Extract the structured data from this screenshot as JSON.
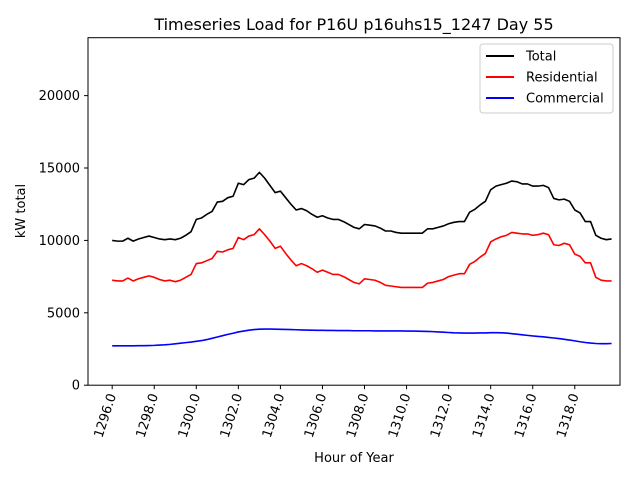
{
  "chart_data": {
    "type": "line",
    "title": "Timeseries Load for P16U p16uhs15_1247  Day 55",
    "xlabel": "Hour of Year",
    "ylabel": "kW total",
    "xlim": [
      1294.85,
      1320.15
    ],
    "ylim": [
      0,
      24000
    ],
    "xticks": [
      1296,
      1298,
      1300,
      1302,
      1304,
      1306,
      1308,
      1310,
      1312,
      1314,
      1316,
      1318
    ],
    "xtick_labels": [
      "1296.0",
      "1298.0",
      "1300.0",
      "1302.0",
      "1304.0",
      "1306.0",
      "1308.0",
      "1310.0",
      "1312.0",
      "1314.0",
      "1316.0",
      "1318.0"
    ],
    "yticks": [
      0,
      5000,
      10000,
      15000,
      20000
    ],
    "ytick_labels": [
      "0",
      "5000",
      "10000",
      "15000",
      "20000"
    ],
    "legend_position": "top-right",
    "x": [
      1296.0,
      1296.25,
      1296.5,
      1296.75,
      1297.0,
      1297.25,
      1297.5,
      1297.75,
      1298.0,
      1298.25,
      1298.5,
      1298.75,
      1299.0,
      1299.25,
      1299.5,
      1299.75,
      1300.0,
      1300.25,
      1300.5,
      1300.75,
      1301.0,
      1301.25,
      1301.5,
      1301.75,
      1302.0,
      1302.25,
      1302.5,
      1302.75,
      1303.0,
      1303.25,
      1303.5,
      1303.75,
      1304.0,
      1304.25,
      1304.5,
      1304.75,
      1305.0,
      1305.25,
      1305.5,
      1305.75,
      1306.0,
      1306.25,
      1306.5,
      1306.75,
      1307.0,
      1307.25,
      1307.5,
      1307.75,
      1308.0,
      1308.25,
      1308.5,
      1308.75,
      1309.0,
      1309.25,
      1309.5,
      1309.75,
      1310.0,
      1310.25,
      1310.5,
      1310.75,
      1311.0,
      1311.25,
      1311.5,
      1311.75,
      1312.0,
      1312.25,
      1312.5,
      1312.75,
      1313.0,
      1313.25,
      1313.5,
      1313.75,
      1314.0,
      1314.25,
      1314.5,
      1314.75,
      1315.0,
      1315.25,
      1315.5,
      1315.75,
      1316.0,
      1316.25,
      1316.5,
      1316.75,
      1317.0,
      1317.25,
      1317.5,
      1317.75,
      1318.0,
      1318.25,
      1318.5,
      1318.75,
      1319.0,
      1319.25,
      1319.5,
      1319.75
    ],
    "series": [
      {
        "name": "Total",
        "color": "#000000",
        "values": [
          10000,
          9950,
          9950,
          10150,
          9950,
          10100,
          10200,
          10300,
          10200,
          10100,
          10050,
          10100,
          10050,
          10150,
          10350,
          10600,
          11450,
          11550,
          11800,
          12000,
          12650,
          12700,
          12950,
          13050,
          13950,
          13850,
          14200,
          14300,
          14700,
          14300,
          13800,
          13300,
          13400,
          12950,
          12500,
          12100,
          12200,
          12050,
          11800,
          11600,
          11700,
          11550,
          11450,
          11450,
          11300,
          11100,
          10900,
          10800,
          11100,
          11050,
          11000,
          10850,
          10650,
          10650,
          10550,
          10500,
          10500,
          10500,
          10500,
          10500,
          10800,
          10800,
          10900,
          11000,
          11150,
          11250,
          11300,
          11300,
          11950,
          12150,
          12450,
          12700,
          13500,
          13750,
          13850,
          13950,
          14100,
          14050,
          13900,
          13900,
          13750,
          13750,
          13800,
          13650,
          12900,
          12800,
          12850,
          12700,
          12100,
          11900,
          11300,
          11300,
          10350,
          10150,
          10050,
          10100
        ]
      },
      {
        "name": "Residential",
        "color": "#ff0000",
        "values": [
          7250,
          7200,
          7200,
          7400,
          7200,
          7350,
          7450,
          7550,
          7450,
          7300,
          7200,
          7250,
          7150,
          7250,
          7450,
          7650,
          8400,
          8450,
          8600,
          8750,
          9250,
          9200,
          9350,
          9450,
          10200,
          10050,
          10300,
          10400,
          10800,
          10400,
          9950,
          9450,
          9600,
          9100,
          8650,
          8250,
          8400,
          8250,
          8050,
          7800,
          7950,
          7800,
          7650,
          7650,
          7500,
          7300,
          7100,
          7000,
          7350,
          7300,
          7250,
          7100,
          6900,
          6850,
          6800,
          6750,
          6750,
          6750,
          6750,
          6750,
          7050,
          7100,
          7200,
          7300,
          7500,
          7600,
          7700,
          7700,
          8350,
          8550,
          8850,
          9100,
          9900,
          10100,
          10250,
          10350,
          10550,
          10500,
          10450,
          10450,
          10350,
          10400,
          10500,
          10400,
          9700,
          9650,
          9800,
          9700,
          9050,
          8900,
          8450,
          8450,
          7450,
          7250,
          7200,
          7200
        ]
      },
      {
        "name": "Commercial",
        "color": "#0000ff",
        "values": [
          2720,
          2720,
          2720,
          2720,
          2720,
          2730,
          2730,
          2740,
          2750,
          2770,
          2790,
          2820,
          2860,
          2900,
          2940,
          2980,
          3030,
          3080,
          3150,
          3240,
          3330,
          3420,
          3510,
          3590,
          3680,
          3740,
          3800,
          3840,
          3870,
          3880,
          3880,
          3870,
          3860,
          3850,
          3840,
          3830,
          3820,
          3810,
          3800,
          3790,
          3790,
          3780,
          3780,
          3770,
          3770,
          3770,
          3760,
          3760,
          3760,
          3760,
          3750,
          3750,
          3750,
          3750,
          3750,
          3750,
          3740,
          3740,
          3730,
          3720,
          3710,
          3700,
          3680,
          3660,
          3640,
          3620,
          3610,
          3600,
          3600,
          3600,
          3610,
          3610,
          3630,
          3630,
          3620,
          3600,
          3560,
          3520,
          3480,
          3440,
          3400,
          3370,
          3340,
          3300,
          3260,
          3220,
          3170,
          3120,
          3060,
          3000,
          2950,
          2910,
          2880,
          2870,
          2870,
          2880
        ]
      }
    ]
  }
}
